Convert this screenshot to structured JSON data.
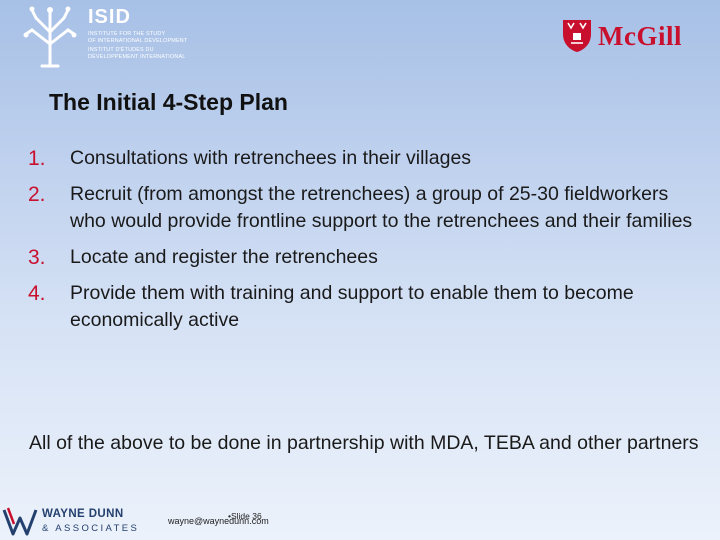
{
  "logos": {
    "isid": {
      "name": "ISID",
      "line1": "Institute for the Study",
      "line2": "of International Development",
      "line3": "Institut d'Études du",
      "line4": "Développement International",
      "icon": "tree-logo-icon"
    },
    "mcgill": {
      "name": "McGill",
      "icon": "shield-logo-icon"
    },
    "wayne_dunn": {
      "name": "WAYNE DUNN",
      "sub": "& ASSOCIATES",
      "icon": "wd-mark-icon"
    }
  },
  "slide": {
    "title": "The Initial 4-Step Plan",
    "items": [
      {
        "num": "1.",
        "text": "Consultations with retrenchees in their villages"
      },
      {
        "num": "2.",
        "text": "Recruit (from amongst the retrenchees) a group of 25-30 fieldworkers who would provide frontline support to the retrenchees and their families"
      },
      {
        "num": "3.",
        "text": "Locate and register the retrenchees"
      },
      {
        "num": "4.",
        "text": "Provide them with training and support to enable them to become economically active"
      }
    ],
    "note": "All of the above to be done in partnership with MDA, TEBA and other partners"
  },
  "footer": {
    "email": "wayne@waynedunn.com",
    "slide_number": "•Slide 36"
  },
  "colors": {
    "accent": "#c8102e",
    "background_top": "#a7c0e6",
    "background_bottom": "#ecf2fb",
    "footer_blue": "#24406e"
  }
}
